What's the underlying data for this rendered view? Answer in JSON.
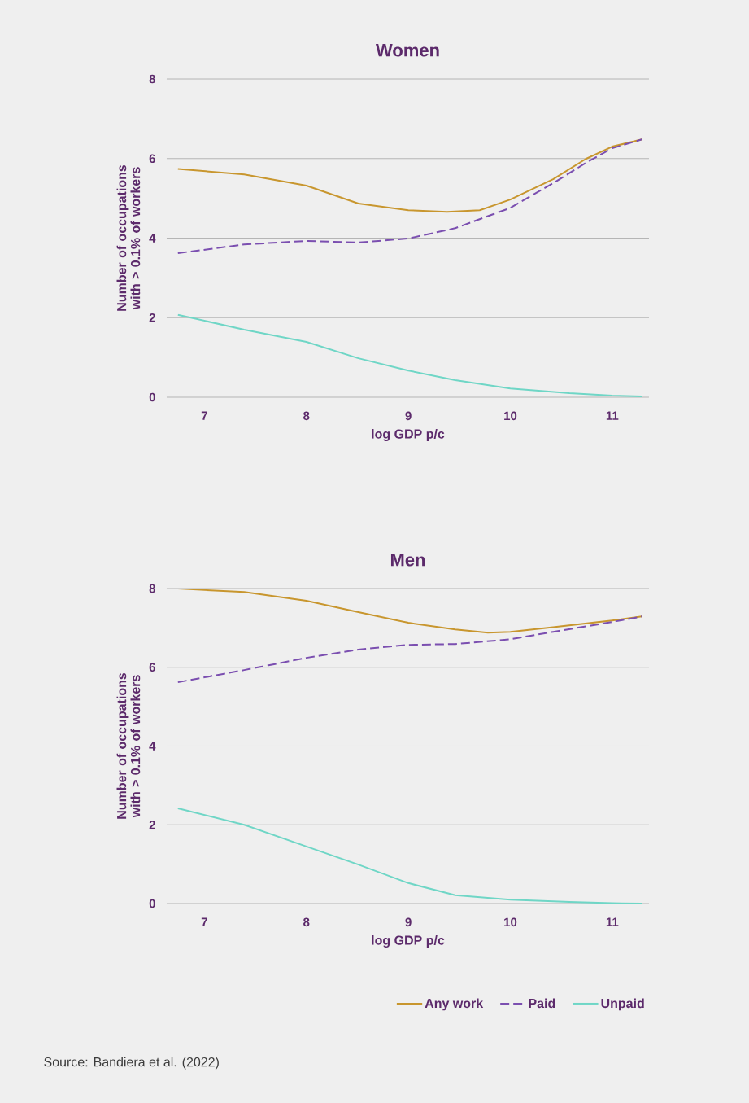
{
  "chart_data": [
    {
      "type": "line",
      "title": "Women",
      "xlabel": "log GDP p/c",
      "ylabel": "Number of occupations with > 0.1% of workers",
      "xlim": [
        6.63,
        11.36
      ],
      "ylim": [
        0,
        8
      ],
      "xticks": [
        7,
        8,
        9,
        10,
        11
      ],
      "yticks": [
        0,
        2,
        4,
        6,
        8
      ],
      "grid": "y",
      "legend": false,
      "series": [
        {
          "color": "#c8962e",
          "line_style": "solid",
          "x": [
            6.74,
            7.39,
            8,
            8.51,
            9,
            9.38,
            9.7,
            10,
            10.42,
            10.74,
            11,
            11.29
          ],
          "values": [
            5.74,
            5.6,
            5.32,
            4.87,
            4.7,
            4.66,
            4.7,
            4.97,
            5.48,
            5.99,
            6.3,
            6.48
          ]
        },
        {
          "color": "#7b4fb0",
          "line_style": "dashed",
          "x": [
            6.74,
            7.39,
            8,
            8.51,
            9,
            9.46,
            10,
            10.42,
            10.74,
            11,
            11.29
          ],
          "values": [
            3.62,
            3.84,
            3.93,
            3.89,
            3.99,
            4.25,
            4.76,
            5.38,
            5.89,
            6.26,
            6.48
          ]
        },
        {
          "color": "#6fd6c6",
          "line_style": "solid",
          "x": [
            6.74,
            7.39,
            8,
            8.51,
            9,
            9.46,
            10,
            10.58,
            11,
            11.29
          ],
          "values": [
            2.07,
            1.7,
            1.39,
            0.98,
            0.67,
            0.43,
            0.22,
            0.1,
            0.04,
            0.02
          ]
        }
      ]
    },
    {
      "type": "line",
      "title": "Men",
      "xlabel": "log GDP p/c",
      "ylabel": "Number of occupations with > 0.1% of workers",
      "xlim": [
        6.63,
        11.36
      ],
      "ylim": [
        0,
        8
      ],
      "xticks": [
        7,
        8,
        9,
        10,
        11
      ],
      "yticks": [
        0,
        2,
        4,
        6,
        8
      ],
      "grid": "y",
      "legend": "bottom right",
      "annotations": [
        "Source: Bandiera et al. (2022)"
      ],
      "series": [
        {
          "name": "Any work",
          "color": "#c8962e",
          "line_style": "solid",
          "x": [
            6.74,
            7.39,
            8,
            8.51,
            9,
            9.46,
            9.78,
            10,
            10.42,
            11,
            11.29
          ],
          "values": [
            8.0,
            7.91,
            7.69,
            7.4,
            7.13,
            6.96,
            6.88,
            6.9,
            7.02,
            7.19,
            7.29
          ]
        },
        {
          "name": "Paid",
          "color": "#7b4fb0",
          "line_style": "dashed",
          "x": [
            6.74,
            7.39,
            8,
            8.51,
            9,
            9.46,
            10,
            10.42,
            11,
            11.29
          ],
          "values": [
            5.62,
            5.93,
            6.24,
            6.45,
            6.57,
            6.59,
            6.71,
            6.9,
            7.15,
            7.29
          ]
        },
        {
          "name": "Unpaid",
          "color": "#6fd6c6",
          "line_style": "solid",
          "x": [
            6.74,
            7.39,
            8,
            8.51,
            9,
            9.46,
            10,
            10.58,
            11,
            11.29
          ],
          "values": [
            2.42,
            2.0,
            1.45,
            0.99,
            0.52,
            0.21,
            0.1,
            0.04,
            0.01,
            0.0
          ]
        }
      ]
    }
  ]
}
